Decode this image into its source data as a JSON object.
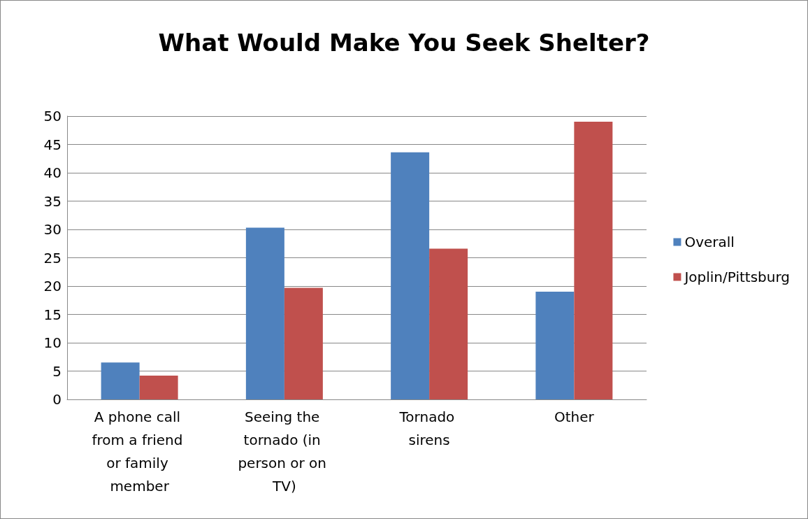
{
  "chart_data": {
    "type": "bar",
    "title": "What Would Make You Seek Shelter?",
    "categories": [
      "A phone call from a friend or family member",
      "Seeing the tornado (in person or on TV)",
      "Tornado sirens",
      "Other"
    ],
    "series": [
      {
        "name": "Overall",
        "color": "#4f81bd",
        "values": [
          6.5,
          30.3,
          43.6,
          19
        ]
      },
      {
        "name": "Joplin/Pittsburg",
        "color": "#c0504d",
        "values": [
          4.2,
          19.7,
          26.6,
          49
        ]
      }
    ],
    "ylim": [
      0,
      50
    ],
    "yticks": [
      0,
      5,
      10,
      15,
      20,
      25,
      30,
      35,
      40,
      45,
      50
    ],
    "grid": "y",
    "legend": "right"
  }
}
